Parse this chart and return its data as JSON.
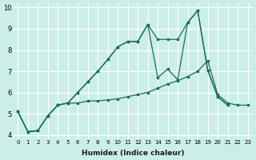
{
  "xlabel": "Humidex (Indice chaleur)",
  "line1_x": [
    0,
    1,
    2,
    3,
    4,
    5,
    6,
    7,
    8,
    9,
    10,
    11,
    12,
    13,
    14,
    15,
    16,
    17,
    18,
    19,
    20,
    21
  ],
  "line1_y": [
    5.1,
    4.15,
    4.2,
    4.9,
    5.4,
    5.5,
    6.0,
    6.5,
    7.0,
    7.55,
    8.15,
    8.4,
    8.4,
    9.2,
    8.5,
    8.5,
    8.5,
    9.3,
    9.85,
    7.05,
    5.8,
    5.4
  ],
  "line2_x": [
    0,
    1,
    2,
    3,
    4,
    5,
    6,
    7,
    8,
    9,
    10,
    11,
    12,
    13,
    14,
    15,
    16,
    17,
    18,
    19,
    20,
    21,
    22,
    23
  ],
  "line2_y": [
    5.1,
    4.15,
    4.2,
    4.9,
    5.4,
    5.5,
    5.5,
    5.6,
    5.6,
    5.65,
    5.7,
    5.8,
    5.9,
    6.0,
    6.2,
    6.4,
    6.55,
    6.75,
    7.0,
    7.5,
    5.9,
    5.5,
    5.4,
    5.4
  ],
  "line3_x": [
    0,
    1,
    2,
    3,
    4,
    5,
    6,
    7,
    8,
    9,
    10,
    11,
    12,
    13,
    14,
    15,
    16,
    17,
    18,
    19,
    20,
    21
  ],
  "line3_y": [
    5.1,
    4.15,
    4.2,
    4.9,
    5.4,
    5.5,
    6.0,
    6.5,
    7.0,
    7.55,
    8.15,
    8.4,
    8.4,
    9.2,
    6.7,
    7.1,
    6.6,
    9.3,
    9.85,
    7.05,
    5.8,
    5.4
  ],
  "line_color": "#1a6b5e",
  "bg_color": "#cceee8",
  "grid_color": "#ffffff",
  "xlim": [
    -0.5,
    23.5
  ],
  "ylim": [
    3.8,
    10.2
  ],
  "yticks": [
    4,
    5,
    6,
    7,
    8,
    9,
    10
  ],
  "xticks": [
    0,
    1,
    2,
    3,
    4,
    5,
    6,
    7,
    8,
    9,
    10,
    11,
    12,
    13,
    14,
    15,
    16,
    17,
    18,
    19,
    20,
    21,
    22,
    23
  ]
}
